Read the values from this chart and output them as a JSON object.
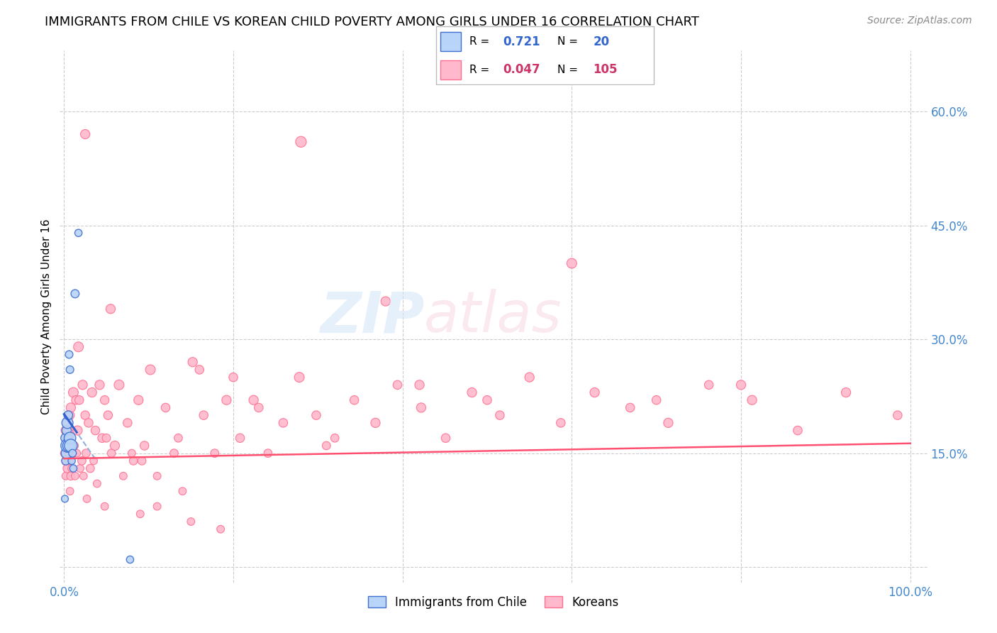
{
  "title": "IMMIGRANTS FROM CHILE VS KOREAN CHILD POVERTY AMONG GIRLS UNDER 16 CORRELATION CHART",
  "source": "Source: ZipAtlas.com",
  "ylabel": "Child Poverty Among Girls Under 16",
  "xlim": [
    -0.005,
    1.02
  ],
  "ylim": [
    -0.02,
    0.68
  ],
  "xtick_positions": [
    0.0,
    0.2,
    0.4,
    0.6,
    0.8,
    1.0
  ],
  "xticklabels": [
    "0.0%",
    "",
    "",
    "",
    "",
    "100.0%"
  ],
  "ytick_positions": [
    0.0,
    0.15,
    0.3,
    0.45,
    0.6
  ],
  "yticklabels_right": [
    "",
    "15.0%",
    "30.0%",
    "45.0%",
    "60.0%"
  ],
  "legend_blue_r": "0.721",
  "legend_blue_n": "20",
  "legend_pink_r": "0.047",
  "legend_pink_n": "105",
  "legend_label_blue": "Immigrants from Chile",
  "legend_label_pink": "Koreans",
  "blue_fill": "#b8d4f8",
  "blue_edge": "#4070d0",
  "pink_fill": "#ffb8cc",
  "pink_edge": "#ff7090",
  "blue_line_color": "#3060d0",
  "pink_line_color": "#ff5070",
  "grid_color": "#cccccc",
  "tick_label_color": "#4488cc",
  "blue_x": [
    0.001,
    0.002,
    0.002,
    0.003,
    0.003,
    0.004,
    0.004,
    0.005,
    0.005,
    0.006,
    0.006,
    0.007,
    0.007,
    0.008,
    0.009,
    0.01,
    0.011,
    0.013,
    0.017,
    0.078
  ],
  "blue_y": [
    0.09,
    0.14,
    0.17,
    0.15,
    0.18,
    0.16,
    0.19,
    0.17,
    0.2,
    0.28,
    0.16,
    0.26,
    0.17,
    0.16,
    0.14,
    0.15,
    0.13,
    0.36,
    0.44,
    0.01
  ],
  "blue_sizes": [
    50,
    70,
    100,
    120,
    90,
    180,
    130,
    60,
    80,
    60,
    170,
    60,
    140,
    170,
    55,
    60,
    55,
    70,
    55,
    55
  ],
  "pink_x": [
    0.001,
    0.002,
    0.002,
    0.003,
    0.003,
    0.004,
    0.004,
    0.005,
    0.005,
    0.006,
    0.006,
    0.007,
    0.007,
    0.008,
    0.008,
    0.009,
    0.01,
    0.011,
    0.012,
    0.013,
    0.014,
    0.015,
    0.016,
    0.017,
    0.018,
    0.019,
    0.021,
    0.022,
    0.023,
    0.025,
    0.026,
    0.027,
    0.029,
    0.031,
    0.033,
    0.035,
    0.037,
    0.039,
    0.042,
    0.045,
    0.048,
    0.052,
    0.056,
    0.06,
    0.065,
    0.07,
    0.075,
    0.082,
    0.088,
    0.095,
    0.102,
    0.11,
    0.12,
    0.13,
    0.14,
    0.152,
    0.165,
    0.178,
    0.192,
    0.208,
    0.224,
    0.241,
    0.259,
    0.278,
    0.298,
    0.32,
    0.343,
    0.368,
    0.394,
    0.422,
    0.451,
    0.482,
    0.515,
    0.55,
    0.587,
    0.627,
    0.669,
    0.714,
    0.762,
    0.813,
    0.867,
    0.924,
    0.985,
    0.05,
    0.08,
    0.11,
    0.15,
    0.2,
    0.28,
    0.38,
    0.048,
    0.092,
    0.16,
    0.23,
    0.31,
    0.42,
    0.5,
    0.6,
    0.7,
    0.8,
    0.025,
    0.055,
    0.09,
    0.135,
    0.185
  ],
  "pink_y": [
    0.15,
    0.12,
    0.18,
    0.14,
    0.17,
    0.13,
    0.19,
    0.15,
    0.18,
    0.14,
    0.17,
    0.1,
    0.2,
    0.12,
    0.21,
    0.13,
    0.15,
    0.23,
    0.16,
    0.12,
    0.22,
    0.15,
    0.18,
    0.29,
    0.22,
    0.13,
    0.14,
    0.24,
    0.12,
    0.2,
    0.15,
    0.09,
    0.19,
    0.13,
    0.23,
    0.14,
    0.18,
    0.11,
    0.24,
    0.17,
    0.08,
    0.2,
    0.15,
    0.16,
    0.24,
    0.12,
    0.19,
    0.14,
    0.22,
    0.16,
    0.26,
    0.12,
    0.21,
    0.15,
    0.1,
    0.27,
    0.2,
    0.15,
    0.22,
    0.17,
    0.22,
    0.15,
    0.19,
    0.25,
    0.2,
    0.17,
    0.22,
    0.19,
    0.24,
    0.21,
    0.17,
    0.23,
    0.2,
    0.25,
    0.19,
    0.23,
    0.21,
    0.19,
    0.24,
    0.22,
    0.18,
    0.23,
    0.2,
    0.17,
    0.15,
    0.08,
    0.06,
    0.25,
    0.56,
    0.35,
    0.22,
    0.14,
    0.26,
    0.21,
    0.16,
    0.24,
    0.22,
    0.4,
    0.22,
    0.24,
    0.57,
    0.34,
    0.07,
    0.17,
    0.05
  ],
  "pink_sizes": [
    80,
    60,
    90,
    100,
    70,
    80,
    90,
    60,
    80,
    70,
    90,
    60,
    80,
    70,
    90,
    60,
    80,
    100,
    70,
    60,
    80,
    60,
    90,
    100,
    80,
    60,
    70,
    90,
    60,
    80,
    70,
    60,
    80,
    70,
    90,
    60,
    80,
    60,
    90,
    80,
    60,
    80,
    70,
    90,
    100,
    60,
    80,
    70,
    90,
    80,
    100,
    60,
    80,
    70,
    60,
    90,
    80,
    70,
    90,
    80,
    90,
    70,
    80,
    100,
    80,
    70,
    80,
    90,
    80,
    90,
    80,
    90,
    80,
    90,
    80,
    90,
    80,
    90,
    80,
    90,
    80,
    90,
    80,
    70,
    60,
    60,
    60,
    80,
    120,
    90,
    80,
    70,
    80,
    80,
    70,
    90,
    80,
    100,
    80,
    90,
    90,
    90,
    60,
    70,
    60
  ]
}
